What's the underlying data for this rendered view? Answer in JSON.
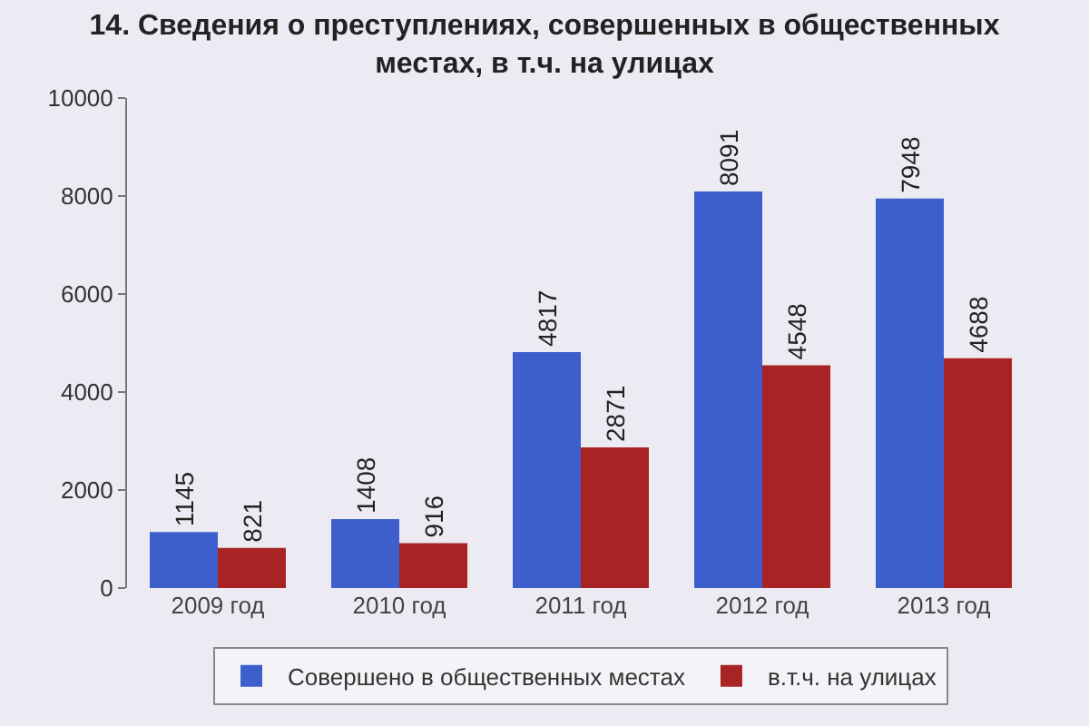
{
  "chart_data": {
    "type": "bar",
    "title": "14. Сведения о преступлениях, совершенных в общественных местах, в т.ч. на улицах",
    "categories": [
      "2009 год",
      "2010 год",
      "2011 год",
      "2012 год",
      "2013 год"
    ],
    "series": [
      {
        "name": "Совершено в общественных местах",
        "color": "#3d5fcc",
        "values": [
          1145,
          1408,
          4817,
          8091,
          7948
        ]
      },
      {
        "name": "в.т.ч. на улицах",
        "color": "#a82424",
        "values": [
          821,
          916,
          2871,
          4548,
          4688
        ]
      }
    ],
    "ylim": [
      0,
      10000
    ],
    "yticks": [
      0,
      2000,
      4000,
      6000,
      8000,
      10000
    ],
    "data_labels": true,
    "legend": "bottom",
    "grid": false
  }
}
